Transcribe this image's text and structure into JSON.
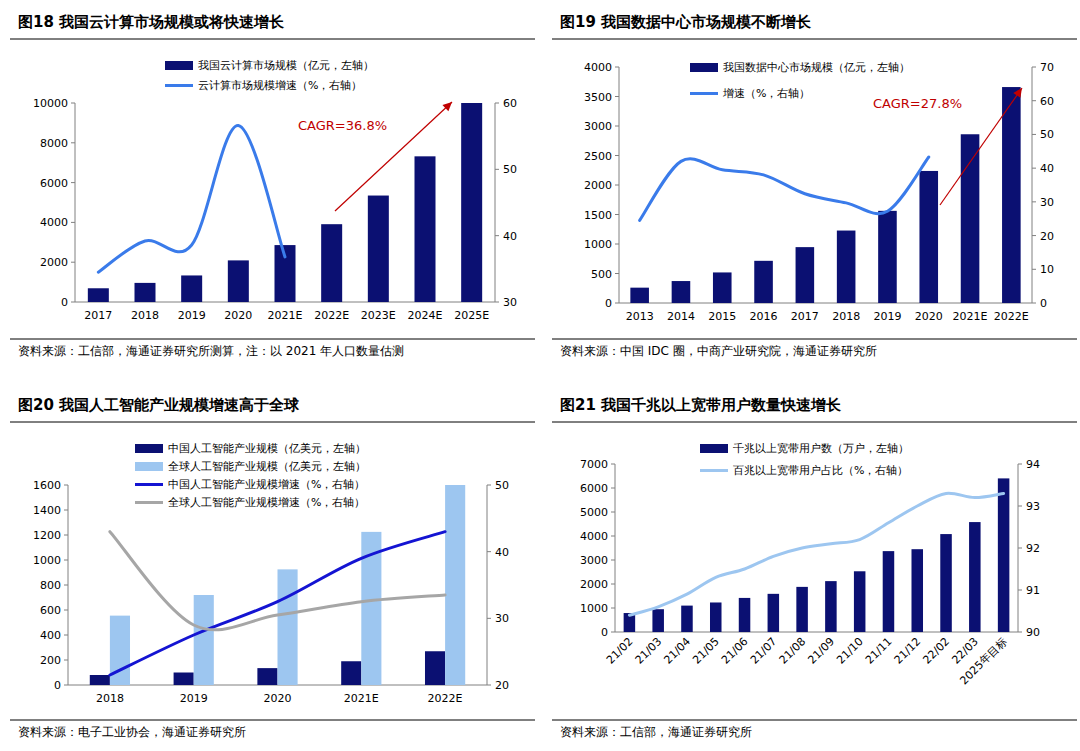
{
  "chart_data": [
    {
      "type": "bar",
      "title": "图18 我国云计算市场规模或将快速增长",
      "source": "资料来源：工信部，海通证券研究所测算，注：以 2021 年人口数量估测",
      "annotation": "CAGR=36.8%",
      "categories": [
        "2017",
        "2018",
        "2019",
        "2020",
        "2021E",
        "2022E",
        "2023E",
        "2024E",
        "2025E"
      ],
      "series": [
        {
          "name": "我国云计算市场规模（亿元，左轴）",
          "type": "bar",
          "color": "#0b1072",
          "values": [
            690,
            960,
            1334,
            2091,
            2860,
            3910,
            5350,
            7320,
            10000
          ]
        },
        {
          "name": "云计算市场规模增速（%，右轴）",
          "type": "line",
          "axis": "y2",
          "color": "#3a7bea",
          "line_style": "smooth",
          "values": [
            34.5,
            39.2,
            38.6,
            56.6,
            36.8,
            null,
            null,
            null,
            null
          ]
        }
      ],
      "ylim": [
        0,
        10000
      ],
      "yticks": [
        0,
        2000,
        4000,
        6000,
        8000,
        10000
      ],
      "y2lim": [
        30,
        60
      ],
      "y2ticks": [
        30,
        40,
        50,
        60
      ],
      "grid": false,
      "legend": "top"
    },
    {
      "type": "bar",
      "title": "图19 我国数据中心市场规模不断增长",
      "source": "资料来源：中国 IDC 圈，中商产业研究院，海通证券研究所",
      "annotation": "CAGR=27.8%",
      "categories": [
        "2013",
        "2014",
        "2015",
        "2016",
        "2017",
        "2018",
        "2019",
        "2020",
        "2021E",
        "2022E"
      ],
      "series": [
        {
          "name": "我国数据中心市场规模（亿元，左轴）",
          "type": "bar",
          "color": "#0b1072",
          "values": [
            260,
            372,
            518,
            715,
            947,
            1228,
            1562,
            2238,
            2860,
            3660
          ]
        },
        {
          "name": "增速（%，右轴）",
          "type": "line",
          "axis": "y2",
          "color": "#3a7bea",
          "line_style": "smooth",
          "values": [
            24.5,
            42,
            39.5,
            38,
            32.4,
            29.7,
            27.2,
            43.3,
            null,
            null
          ]
        }
      ],
      "ylim": [
        0,
        4000
      ],
      "yticks": [
        0,
        500,
        1000,
        1500,
        2000,
        2500,
        3000,
        3500,
        4000
      ],
      "y2lim": [
        0,
        70
      ],
      "y2ticks": [
        0,
        10,
        20,
        30,
        40,
        50,
        60,
        70
      ],
      "grid": false,
      "legend": "top"
    },
    {
      "type": "bar",
      "title": "图20 我国人工智能产业规模增速高于全球",
      "source": "资料来源：电子工业协会，海通证券研究所",
      "categories": [
        "2018",
        "2019",
        "2020",
        "2021E",
        "2022E"
      ],
      "series": [
        {
          "name": "中国人工智能产业规模（亿美元，左轴）",
          "type": "bar",
          "color": "#0b1072",
          "values": [
            80,
            100,
            135,
            190,
            270
          ]
        },
        {
          "name": "全球人工智能产业规模（亿美元，左轴）",
          "type": "bar",
          "color": "#9dc6f0",
          "values": [
            555,
            720,
            925,
            1225,
            1600
          ]
        },
        {
          "name": "中国人工智能产业规模增速（%，右轴）",
          "type": "line",
          "axis": "y2",
          "color": "#1414d2",
          "line_style": "smooth",
          "values": [
            21.5,
            27.5,
            32.5,
            39,
            43
          ]
        },
        {
          "name": "全球人工智能产业规模增速（%，右轴）",
          "type": "line",
          "axis": "y2",
          "color": "#a6a6a6",
          "line_style": "smooth",
          "values": [
            43,
            29,
            30.5,
            32.5,
            33.5
          ]
        }
      ],
      "ylim": [
        0,
        1600
      ],
      "yticks": [
        0,
        200,
        400,
        600,
        800,
        1000,
        1200,
        1400,
        1600
      ],
      "y2lim": [
        20,
        50
      ],
      "y2ticks": [
        20,
        30,
        40,
        50
      ],
      "grid": false,
      "legend": "top"
    },
    {
      "type": "bar",
      "title": "图21 我国千兆以上宽带用户数量快速增长",
      "source": "资料来源：工信部，海通证券研究所",
      "categories": [
        "21/02",
        "21/03",
        "21/04",
        "21/05",
        "21/06",
        "21/07",
        "21/08",
        "21/09",
        "21/10",
        "21/11",
        "21/12",
        "22/02",
        "22/03",
        "2025年目标"
      ],
      "series": [
        {
          "name": "千兆以上宽带用户数（万户，左轴）",
          "type": "bar",
          "color": "#0b1072",
          "values": [
            790,
            950,
            1100,
            1230,
            1420,
            1590,
            1880,
            2120,
            2530,
            3370,
            3450,
            4080,
            4580,
            6400
          ]
        },
        {
          "name": "百兆以上宽带用户占比（%，右轴）",
          "type": "line",
          "axis": "y2",
          "color": "#9dc6f0",
          "line_style": "smooth",
          "values": [
            90.4,
            90.6,
            90.9,
            91.3,
            91.5,
            91.8,
            92.0,
            92.1,
            92.2,
            92.6,
            93.0,
            93.3,
            93.2,
            93.3
          ]
        }
      ],
      "ylim": [
        0,
        7000
      ],
      "yticks": [
        0,
        1000,
        2000,
        3000,
        4000,
        5000,
        6000,
        7000
      ],
      "y2lim": [
        90,
        94
      ],
      "y2ticks": [
        90,
        91,
        92,
        93,
        94
      ],
      "grid": false,
      "legend": "top"
    }
  ]
}
